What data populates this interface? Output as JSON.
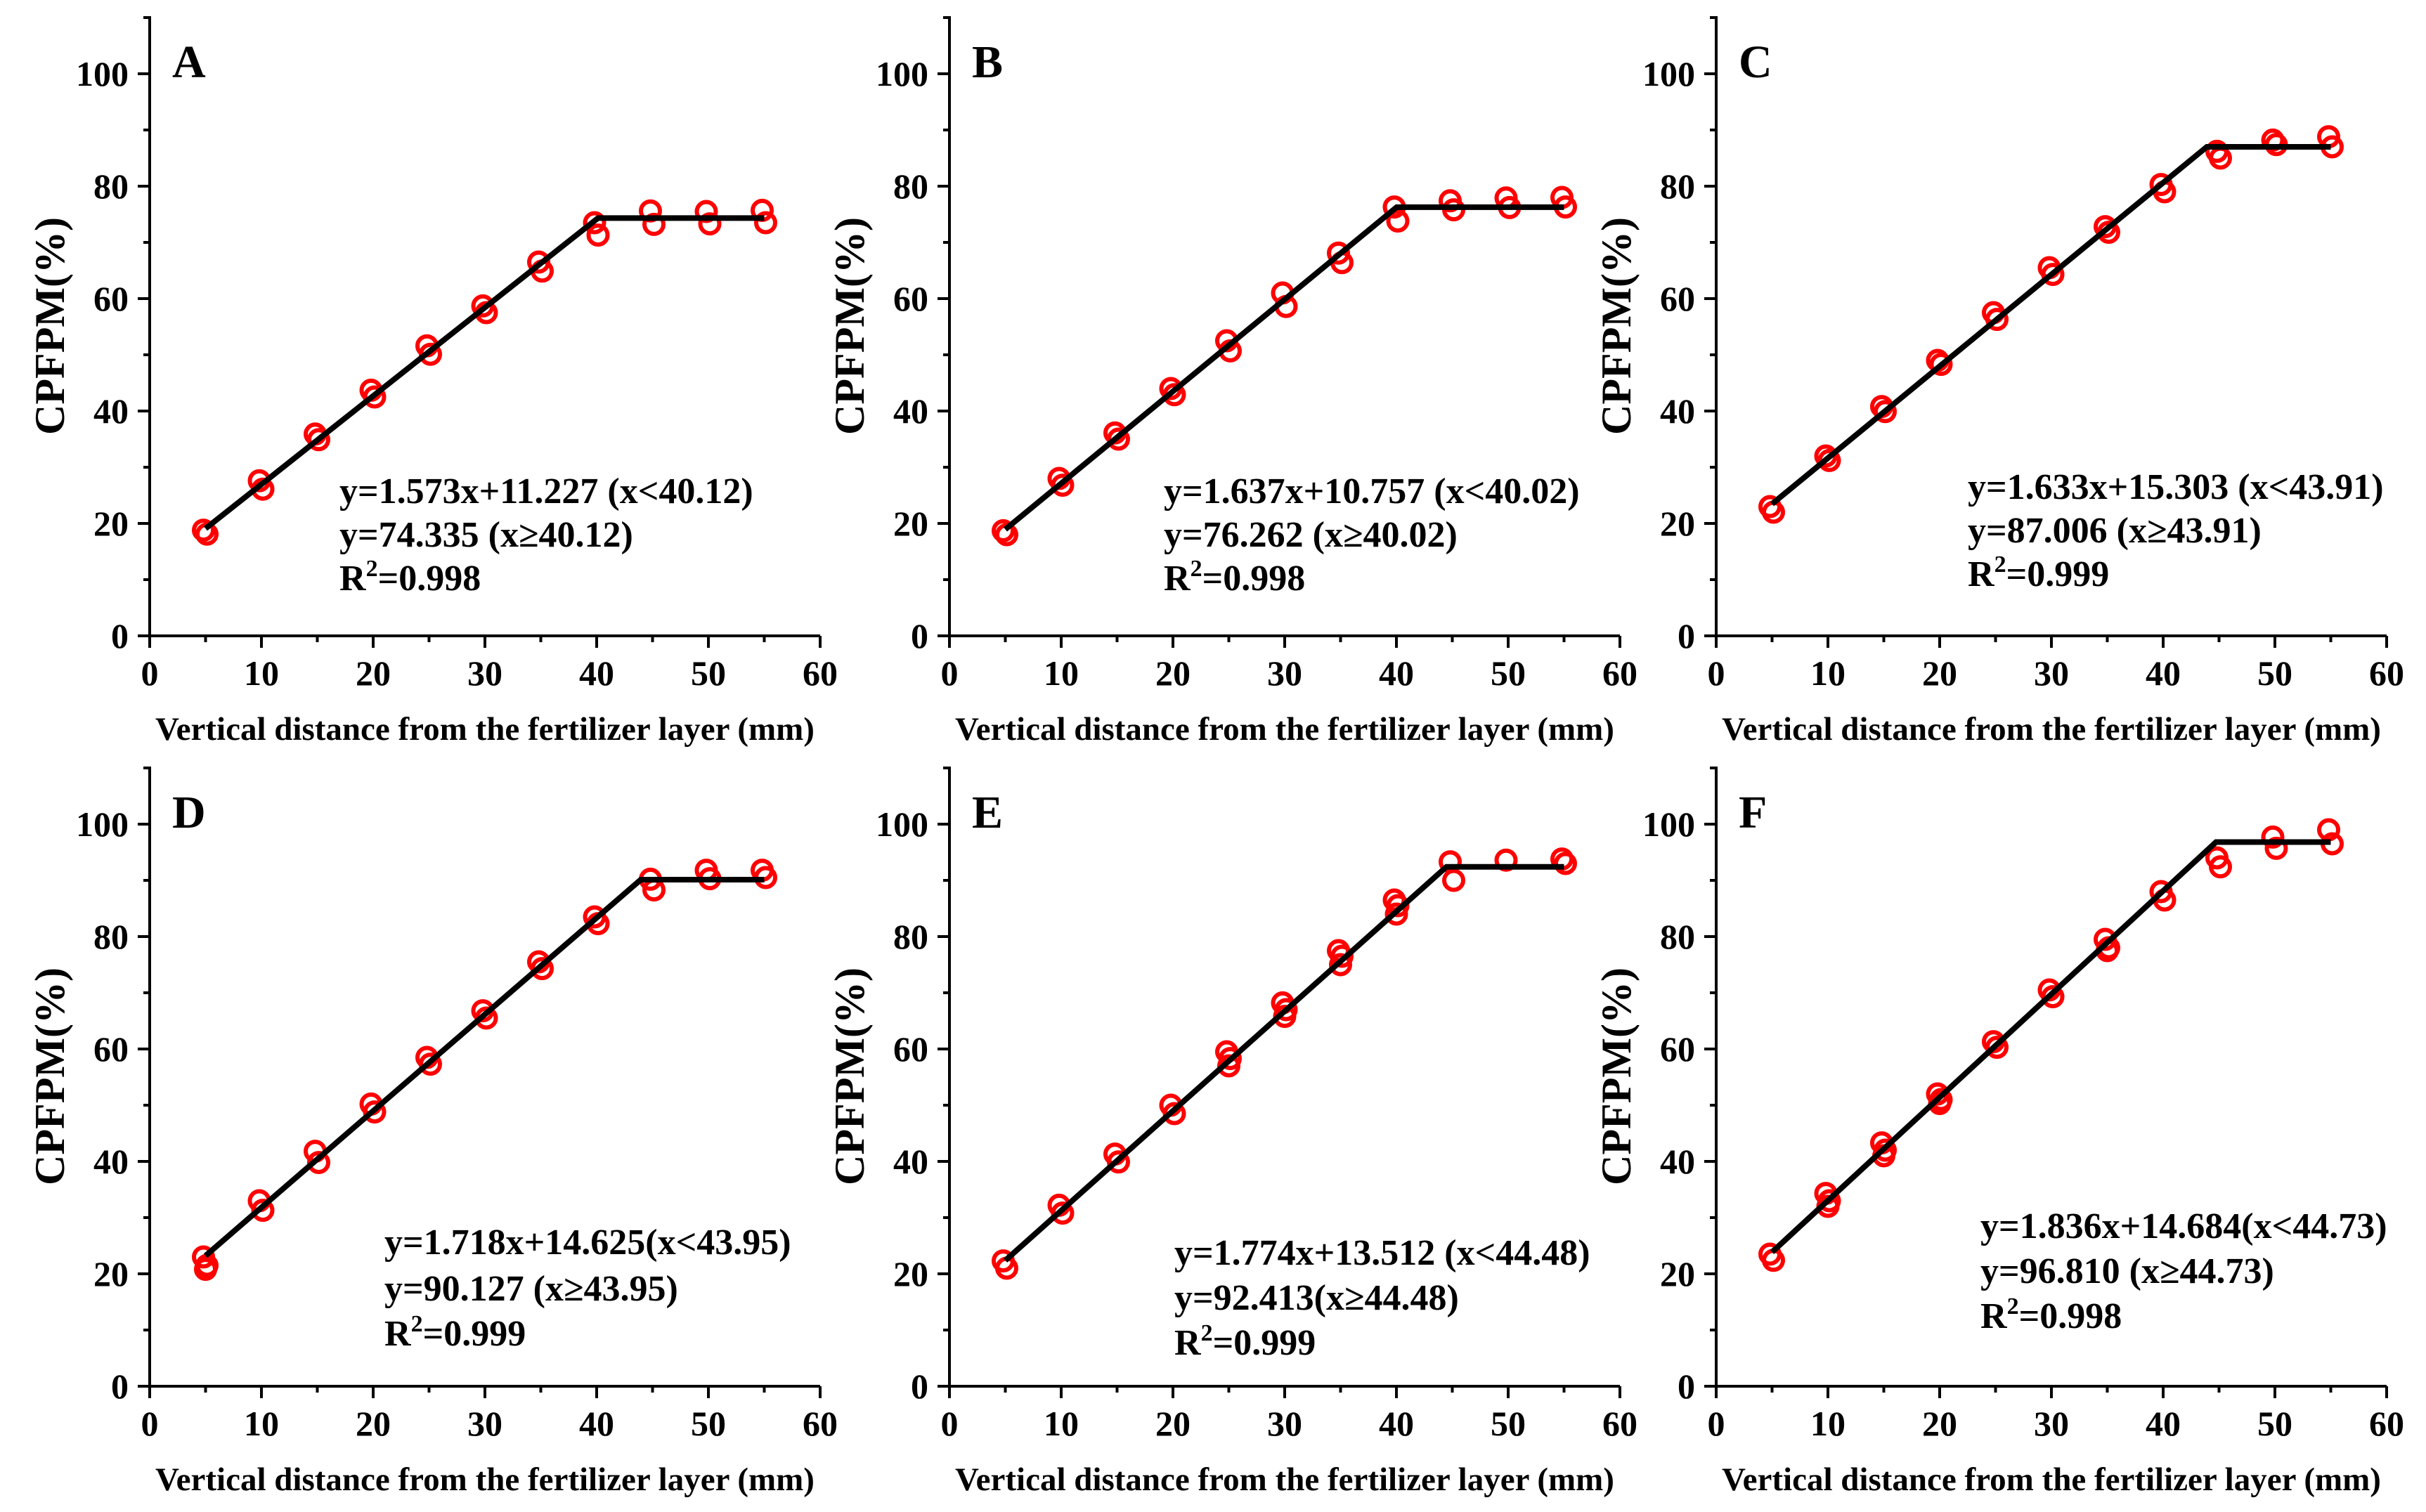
{
  "figure": {
    "xlabel": "Vertical distance from the fertilizer layer (mm)",
    "ylabel": "CPFPM(%)",
    "marker_color": "#ff0000",
    "line_color": "#000000",
    "xlim": [
      0,
      60
    ],
    "ylim": [
      0,
      110
    ],
    "x_major_ticks": [
      0,
      10,
      20,
      30,
      40,
      50,
      60
    ],
    "x_minor_ticks": [
      5,
      15,
      25,
      35,
      45,
      55
    ],
    "y_major_ticks": [
      0,
      20,
      40,
      60,
      80,
      100
    ],
    "y_minor_ticks": [
      10,
      30,
      50,
      70,
      90,
      110
    ],
    "grid": "off",
    "legend": "none"
  },
  "chart_data": [
    {
      "panel_label": "A",
      "type": "scatter",
      "title": "",
      "xlabel": "Vertical distance from the fertilizer layer (mm)",
      "ylabel": "CPFPM(%)",
      "equations": [
        "y=1.573x+11.227 (x<40.12)",
        "y=74.335 (x≥40.12)"
      ],
      "r_squared": {
        "base": "R",
        "sup": "2",
        "rest": "=0.998"
      },
      "fit": {
        "slope": 1.573,
        "intercept": 11.227,
        "breakpoint": 40.12,
        "plateau": 74.335,
        "r2": 0.998,
        "x_start": 5,
        "x_end": 55
      },
      "x": [
        5,
        10,
        15,
        20,
        25,
        30,
        35,
        40,
        45,
        50,
        55
      ],
      "y_groups": [
        [
          18.8,
          18.1
        ],
        [
          27.6,
          26.1
        ],
        [
          35.9,
          34.9
        ],
        [
          43.7,
          42.5
        ],
        [
          51.6,
          50.1
        ],
        [
          58.7,
          57.5
        ],
        [
          66.5,
          64.9
        ],
        [
          73.5,
          71.3
        ],
        [
          75.6,
          73.2
        ],
        [
          75.5,
          73.3
        ],
        [
          75.7,
          73.5
        ]
      ]
    },
    {
      "panel_label": "B",
      "type": "scatter",
      "title": "",
      "xlabel": "Vertical distance from the fertilizer layer (mm)",
      "ylabel": "CPFPM(%)",
      "equations": [
        "y=1.637x+10.757 (x<40.02)",
        "y=76.262 (x≥40.02)"
      ],
      "r_squared": {
        "base": "R",
        "sup": "2",
        "rest": "=0.998"
      },
      "fit": {
        "slope": 1.637,
        "intercept": 10.757,
        "breakpoint": 40.02,
        "plateau": 76.262,
        "r2": 0.998,
        "x_start": 5,
        "x_end": 55
      },
      "x": [
        5,
        10,
        15,
        20,
        25,
        30,
        35,
        40,
        45,
        50,
        55
      ],
      "y_groups": [
        [
          18.7,
          18.0
        ],
        [
          28.0,
          26.8
        ],
        [
          36.1,
          35.0
        ],
        [
          44.0,
          42.9
        ],
        [
          52.5,
          50.7
        ],
        [
          61.0,
          58.6
        ],
        [
          68.1,
          66.4
        ],
        [
          76.3,
          73.8
        ],
        [
          77.4,
          75.8
        ],
        [
          77.9,
          76.2
        ],
        [
          78.0,
          76.3
        ]
      ]
    },
    {
      "panel_label": "C",
      "type": "scatter",
      "title": "",
      "xlabel": "Vertical distance from the fertilizer layer (mm)",
      "ylabel": "CPFPM(%)",
      "equations": [
        "y=1.633x+15.303 (x<43.91)",
        "y=87.006 (x≥43.91)"
      ],
      "r_squared": {
        "base": "R",
        "sup": "2",
        "rest": "=0.999"
      },
      "fit": {
        "slope": 1.633,
        "intercept": 15.303,
        "breakpoint": 43.91,
        "plateau": 87.006,
        "r2": 0.999,
        "x_start": 5,
        "x_end": 55
      },
      "x": [
        5,
        10,
        15,
        20,
        25,
        30,
        35,
        40,
        45,
        50,
        55
      ],
      "y_groups": [
        [
          23.0,
          22.0
        ],
        [
          32.0,
          31.2
        ],
        [
          40.8,
          39.9
        ],
        [
          49.0,
          48.3
        ],
        [
          57.5,
          56.3
        ],
        [
          65.5,
          64.3
        ],
        [
          72.8,
          71.8
        ],
        [
          80.3,
          79.0
        ],
        [
          86.2,
          85.0
        ],
        [
          88.2,
          87.4
        ],
        [
          88.8,
          87.0
        ]
      ]
    },
    {
      "panel_label": "D",
      "type": "scatter",
      "title": "",
      "xlabel": "Vertical distance from the fertilizer layer (mm)",
      "ylabel": "CPFPM(%)",
      "equations": [
        "y=1.718x+14.625(x<43.95)",
        "y=90.127 (x≥43.95)"
      ],
      "r_squared": {
        "base": "R",
        "sup": "2",
        "rest": "=0.999"
      },
      "fit": {
        "slope": 1.718,
        "intercept": 14.625,
        "breakpoint": 43.95,
        "plateau": 90.127,
        "r2": 0.999,
        "x_start": 5,
        "x_end": 55
      },
      "x": [
        5,
        10,
        15,
        20,
        25,
        30,
        35,
        40,
        45,
        50,
        55
      ],
      "y_groups": [
        [
          23.0,
          21.5,
          20.8
        ],
        [
          33.0,
          31.3
        ],
        [
          41.8,
          39.8
        ],
        [
          50.2,
          48.8
        ],
        [
          58.5,
          57.3
        ],
        [
          66.8,
          65.5
        ],
        [
          75.5,
          74.3
        ],
        [
          83.5,
          82.3
        ],
        [
          90.2,
          88.3
        ],
        [
          91.8,
          90.3
        ],
        [
          91.8,
          90.5
        ]
      ]
    },
    {
      "panel_label": "E",
      "type": "scatter",
      "title": "",
      "xlabel": "Vertical distance from the fertilizer layer (mm)",
      "ylabel": "CPFPM(%)",
      "equations": [
        "y=1.774x+13.512 (x<44.48)",
        "y=92.413(x≥44.48)"
      ],
      "r_squared": {
        "base": "R",
        "sup": "2",
        "rest": "=0.999"
      },
      "fit": {
        "slope": 1.774,
        "intercept": 13.512,
        "breakpoint": 44.48,
        "plateau": 92.413,
        "r2": 0.999,
        "x_start": 5,
        "x_end": 55
      },
      "x": [
        5,
        10,
        15,
        20,
        25,
        30,
        35,
        40,
        45,
        50,
        55
      ],
      "y_groups": [
        [
          22.3,
          21.0
        ],
        [
          32.2,
          30.8
        ],
        [
          41.3,
          39.9
        ],
        [
          50.0,
          48.5
        ],
        [
          59.5,
          58.3,
          57.0
        ],
        [
          68.2,
          67.0,
          65.8
        ],
        [
          77.5,
          76.5,
          75.0
        ],
        [
          86.5,
          85.5,
          84.0
        ],
        [
          93.3,
          90.0
        ],
        [
          93.6
        ],
        [
          93.8,
          93.0
        ]
      ]
    },
    {
      "panel_label": "F",
      "type": "scatter",
      "title": "",
      "xlabel": "Vertical distance from the fertilizer layer (mm)",
      "ylabel": "CPFPM(%)",
      "equations": [
        "y=1.836x+14.684(x<44.73)",
        "y=96.810 (x≥44.73)"
      ],
      "r_squared": {
        "base": "R",
        "sup": "2",
        "rest": "=0.998"
      },
      "fit": {
        "slope": 1.836,
        "intercept": 14.684,
        "breakpoint": 44.73,
        "plateau": 96.81,
        "r2": 0.998,
        "x_start": 5,
        "x_end": 55
      },
      "x": [
        5,
        10,
        15,
        20,
        25,
        30,
        35,
        40,
        45,
        50,
        55
      ],
      "y_groups": [
        [
          23.5,
          22.4
        ],
        [
          34.3,
          33.0,
          32.0
        ],
        [
          43.3,
          42.0,
          41.0
        ],
        [
          52.0,
          51.0,
          50.3
        ],
        [
          61.3,
          60.3
        ],
        [
          70.5,
          69.3
        ],
        [
          79.5,
          78.0,
          77.5
        ],
        [
          88.0,
          86.5
        ],
        [
          94.0,
          92.4
        ],
        [
          97.7,
          95.7
        ],
        [
          99.0,
          96.5
        ]
      ]
    }
  ]
}
